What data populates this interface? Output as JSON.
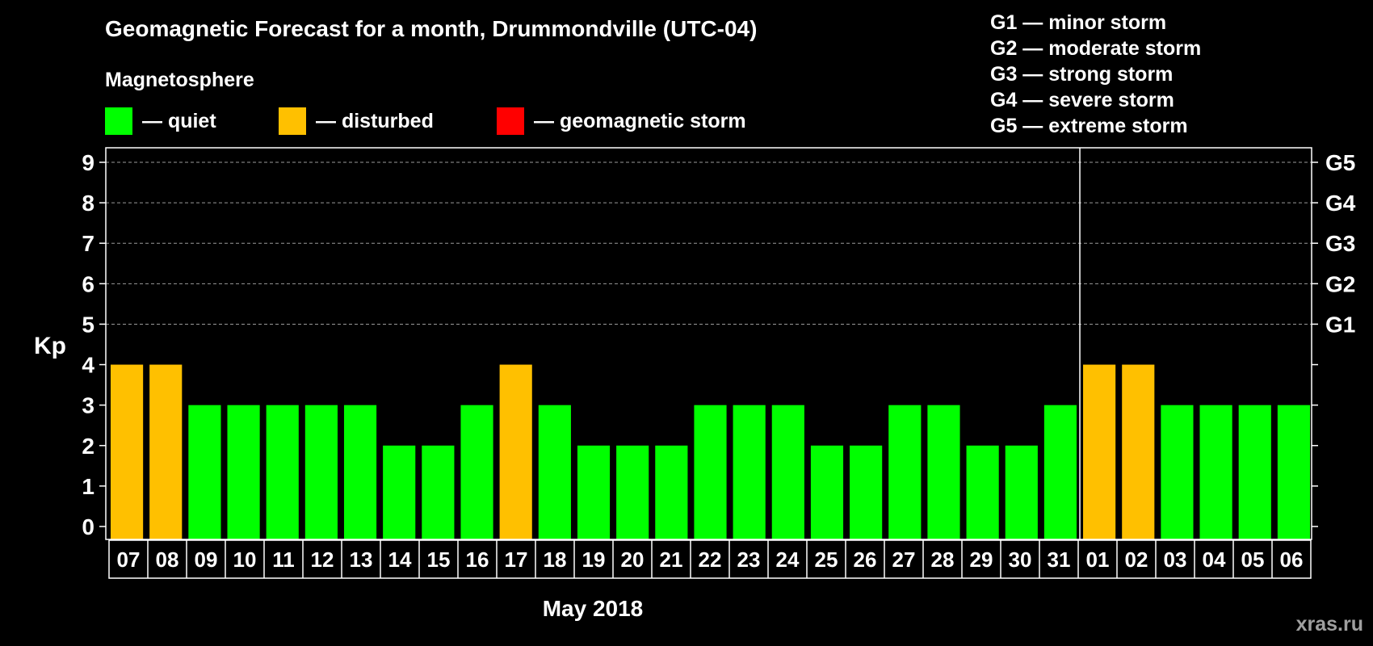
{
  "title": "Geomagnetic Forecast for a month, Drummondville (UTC-04)",
  "magnetosphere_label": "Magnetosphere",
  "legend": [
    {
      "label": "— quiet",
      "color": "#00ff00"
    },
    {
      "label": "— disturbed",
      "color": "#ffc000"
    },
    {
      "label": "— geomagnetic storm",
      "color": "#ff0000"
    }
  ],
  "g_scale": [
    "G1 — minor storm",
    "G2 — moderate storm",
    "G3 — strong storm",
    "G4 — severe storm",
    "G5 — extreme storm"
  ],
  "watermark": "xras.ru",
  "chart_data": {
    "type": "bar",
    "ylabel": "Kp",
    "xlabel": "May 2018",
    "ylim": [
      0,
      9
    ],
    "y_ticks": [
      0,
      1,
      2,
      3,
      4,
      5,
      6,
      7,
      8,
      9
    ],
    "right_axis_labels": [
      {
        "kp": 5,
        "label": "G1"
      },
      {
        "kp": 6,
        "label": "G2"
      },
      {
        "kp": 7,
        "label": "G3"
      },
      {
        "kp": 8,
        "label": "G4"
      },
      {
        "kp": 9,
        "label": "G5"
      }
    ],
    "grid": "dashed horizontal at Kp 5-9",
    "month_divider_after": "31",
    "categories": [
      "07",
      "08",
      "09",
      "10",
      "11",
      "12",
      "13",
      "14",
      "15",
      "16",
      "17",
      "18",
      "19",
      "20",
      "21",
      "22",
      "23",
      "24",
      "25",
      "26",
      "27",
      "28",
      "29",
      "30",
      "31",
      "01",
      "02",
      "03",
      "04",
      "05",
      "06"
    ],
    "values": [
      4,
      4,
      3,
      3,
      3,
      3,
      3,
      2,
      2,
      3,
      4,
      3,
      2,
      2,
      2,
      3,
      3,
      3,
      2,
      2,
      3,
      3,
      2,
      2,
      3,
      4,
      4,
      3,
      3,
      3,
      3
    ],
    "status": [
      "disturbed",
      "disturbed",
      "quiet",
      "quiet",
      "quiet",
      "quiet",
      "quiet",
      "quiet",
      "quiet",
      "quiet",
      "disturbed",
      "quiet",
      "quiet",
      "quiet",
      "quiet",
      "quiet",
      "quiet",
      "quiet",
      "quiet",
      "quiet",
      "quiet",
      "quiet",
      "quiet",
      "quiet",
      "quiet",
      "disturbed",
      "disturbed",
      "quiet",
      "quiet",
      "quiet",
      "quiet"
    ],
    "colors": {
      "quiet": "#00ff00",
      "disturbed": "#ffc000",
      "storm": "#ff0000"
    }
  }
}
